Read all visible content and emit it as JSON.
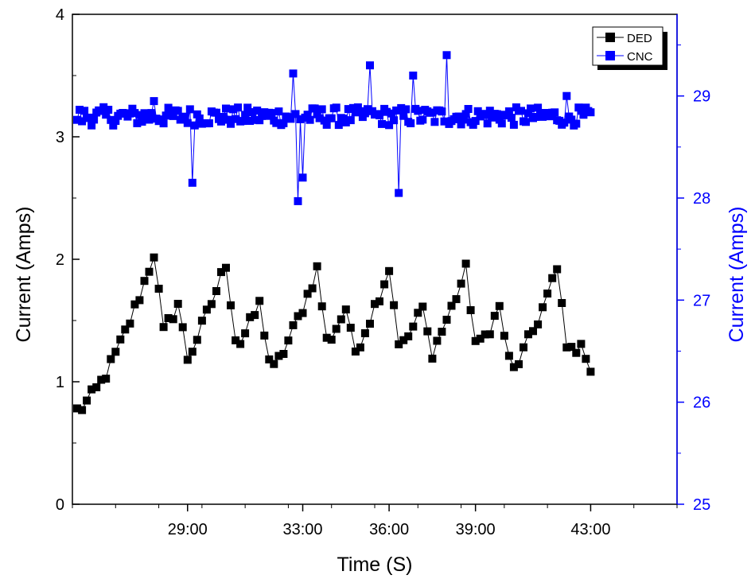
{
  "chart_data": {
    "type": "line",
    "title": "",
    "xlabel": "Time (S)",
    "ylabel_left": "Current (Amps)",
    "ylabel_right": "Current (Amps)",
    "x_ticks": [
      "29:00",
      "33:00",
      "36:00",
      "39:00",
      "43:00"
    ],
    "ylim_left": [
      0,
      4
    ],
    "yticks_left": [
      "0",
      "1",
      "2",
      "3",
      "4"
    ],
    "ylim_right": [
      25,
      29.8
    ],
    "yticks_right": [
      "25",
      "26",
      "27",
      "28",
      "29"
    ],
    "legend_position": "top-right",
    "grid": false,
    "colors": {
      "ded": "#000000",
      "cnc": "#0000ff",
      "right_axis": "#0000ff"
    },
    "series": [
      {
        "name": "DED",
        "axis": "left",
        "marker": "square",
        "cycles": 7,
        "base_current": 0.75,
        "peaks": [
          {
            "time": "27:50",
            "value": 2.05
          },
          {
            "time": "28:40",
            "value": 1.64
          },
          {
            "time": "30:20",
            "value": 1.97
          },
          {
            "time": "31:30",
            "value": 1.63
          },
          {
            "time": "33:30",
            "value": 1.92
          },
          {
            "time": "34:30",
            "value": 1.6
          },
          {
            "time": "36:00",
            "value": 1.93
          },
          {
            "time": "37:10",
            "value": 1.6
          },
          {
            "time": "38:40",
            "value": 1.91
          },
          {
            "time": "39:50",
            "value": 1.6
          },
          {
            "time": "41:50",
            "value": 1.91
          },
          {
            "time": "42:40",
            "value": 1.34
          }
        ]
      },
      {
        "name": "CNC",
        "axis": "right",
        "marker": "square",
        "mean_current": 28.8,
        "spikes": [
          {
            "time": "27:50",
            "value": 28.95
          },
          {
            "time": "29:10",
            "value": 28.15
          },
          {
            "time": "32:40",
            "value": 29.22
          },
          {
            "time": "32:50",
            "value": 27.97
          },
          {
            "time": "33:00",
            "value": 28.2
          },
          {
            "time": "35:20",
            "value": 29.3
          },
          {
            "time": "36:20",
            "value": 28.05
          },
          {
            "time": "36:50",
            "value": 29.2
          },
          {
            "time": "38:00",
            "value": 29.4
          },
          {
            "time": "42:10",
            "value": 29.0
          }
        ]
      }
    ]
  }
}
